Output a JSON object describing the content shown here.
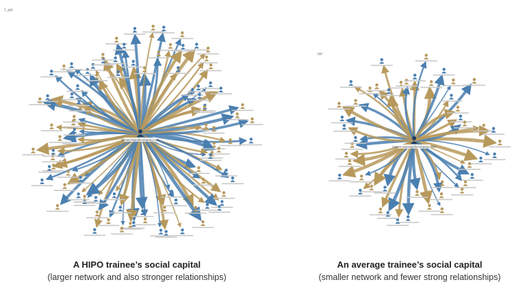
{
  "corner_marks": {
    "left": "1_ppt",
    "right": "ppt"
  },
  "left": {
    "title": "A HIPO trainee’s social capital",
    "subtitle": "(larger network and also stronger relationships)",
    "center_label": "trainee.hipo@company.com",
    "edge_count": 96,
    "node_count": 96
  },
  "right": {
    "title": "An average trainee’s social capital",
    "subtitle": "(smaller network and fewer strong relationships)",
    "center_label": "trainee.average@company.com",
    "edge_count": 48,
    "node_count": 48
  },
  "colors": {
    "blue": "#4a7fb0",
    "gold": "#b7995c",
    "label": "#8a8a8a"
  }
}
